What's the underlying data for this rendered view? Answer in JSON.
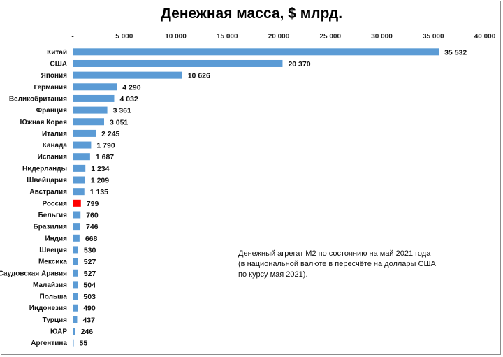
{
  "chart_data": {
    "type": "bar",
    "orientation": "horizontal",
    "title": "Денежная масса, $ млрд.",
    "categories": [
      "Китай",
      "США",
      "Япония",
      "Германия",
      "Великобритания",
      "Франция",
      "Южная  Корея",
      "Италия",
      "Канада",
      "Испания",
      "Нидерланды",
      "Швейцария",
      "Австралия",
      "Россия",
      "Бельгия",
      "Бразилия",
      "Индия",
      "Швеция",
      "Мексика",
      "Саудовская  Аравия",
      "Малайзия",
      "Польша",
      "Индонезия",
      "Турция",
      "ЮАР",
      "Аргентина"
    ],
    "values": [
      35532,
      20370,
      10626,
      4290,
      4032,
      3361,
      3051,
      2245,
      1790,
      1687,
      1234,
      1209,
      1135,
      799,
      760,
      746,
      668,
      530,
      527,
      527,
      504,
      503,
      490,
      437,
      246,
      55
    ],
    "value_labels": [
      "35 532",
      "20 370",
      "10 626",
      "4 290",
      "4 032",
      "3 361",
      "3 051",
      "2 245",
      "1 790",
      "1 687",
      "1 234",
      "1 209",
      "1 135",
      "799",
      "760",
      "746",
      "668",
      "530",
      "527",
      "527",
      "504",
      "503",
      "490",
      "437",
      "246",
      "55"
    ],
    "xlim": [
      0,
      40000
    ],
    "x_ticks": [
      0,
      5000,
      10000,
      15000,
      20000,
      25000,
      30000,
      35000,
      40000
    ],
    "x_tick_labels": [
      "-",
      "5 000",
      "10 000",
      "15 000",
      "20 000",
      "25 000",
      "30 000",
      "35 000",
      "40 000"
    ],
    "x_axis_position": "top",
    "grid": false,
    "legend": "none",
    "colors": {
      "bar": "#5b9bd5",
      "highlight": "#ff0000"
    },
    "highlight_category": "Россия"
  },
  "note": {
    "lines": [
      "Денежный агрегат М2 по состоянию на май 2021  года",
      "(в национальной валюте в пересчёте на доллары США",
      "по курсу мая 2021)."
    ]
  }
}
